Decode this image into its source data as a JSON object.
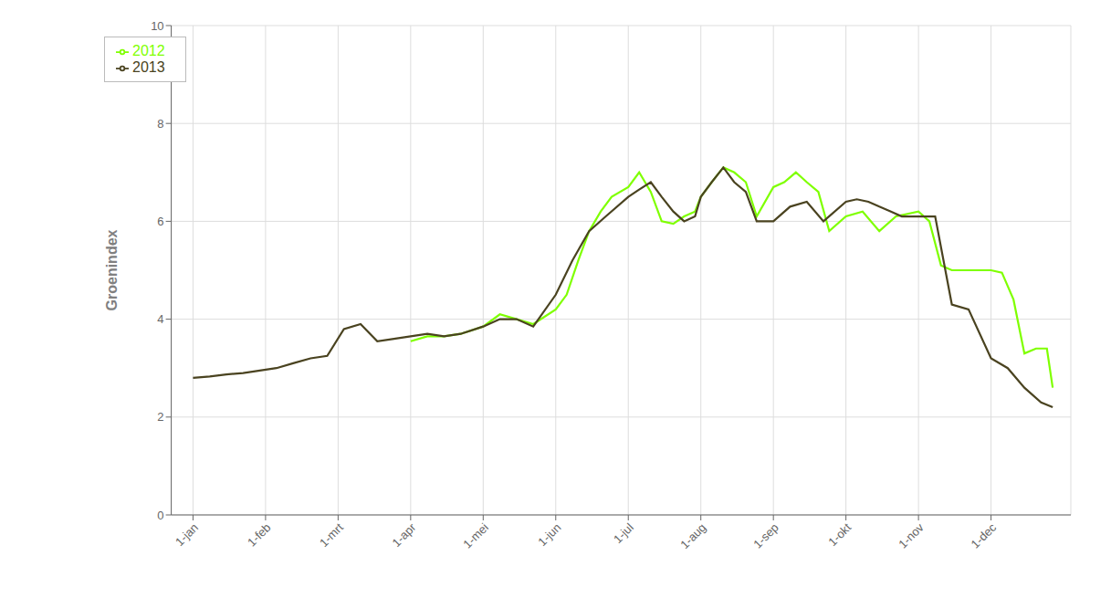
{
  "chart_data": {
    "type": "line",
    "ylabel": "Groenindex",
    "xlim": [
      -0.3,
      12.1
    ],
    "xticks": [
      {
        "value": 0,
        "label": "1-jan"
      },
      {
        "value": 1,
        "label": "1-feb"
      },
      {
        "value": 2,
        "label": "1-mrt"
      },
      {
        "value": 3,
        "label": "1-apr"
      },
      {
        "value": 4,
        "label": "1-mei"
      },
      {
        "value": 5,
        "label": "1-jun"
      },
      {
        "value": 6,
        "label": "1-jul"
      },
      {
        "value": 7,
        "label": "1-aug"
      },
      {
        "value": 8,
        "label": "1-sep"
      },
      {
        "value": 9,
        "label": "1-okt"
      },
      {
        "value": 10,
        "label": "1-nov"
      },
      {
        "value": 11,
        "label": "1-dec"
      }
    ],
    "ylim": [
      0,
      10
    ],
    "yticks": [
      0,
      2,
      4,
      6,
      8,
      10
    ],
    "grid": true,
    "legend": "upper left",
    "series": [
      {
        "name": "2012",
        "color": "#7fff00",
        "x": [
          3.0,
          3.23,
          3.46,
          3.69,
          4.0,
          4.23,
          4.46,
          4.69,
          5.0,
          5.15,
          5.31,
          5.46,
          5.62,
          5.77,
          6.0,
          6.15,
          6.31,
          6.46,
          6.62,
          6.77,
          6.92,
          7.0,
          7.15,
          7.31,
          7.46,
          7.62,
          7.77,
          8.0,
          8.15,
          8.31,
          8.46,
          8.62,
          8.77,
          9.0,
          9.23,
          9.46,
          9.69,
          10.0,
          10.15,
          10.31,
          10.46,
          10.62,
          11.0,
          11.15,
          11.31,
          11.46,
          11.62,
          11.77,
          11.85
        ],
        "values": [
          3.55,
          3.65,
          3.65,
          3.7,
          3.85,
          4.1,
          4.0,
          3.9,
          4.2,
          4.5,
          5.2,
          5.8,
          6.2,
          6.5,
          6.7,
          7.0,
          6.6,
          6.0,
          5.95,
          6.1,
          6.2,
          6.5,
          6.8,
          7.1,
          7.0,
          6.8,
          6.1,
          6.7,
          6.8,
          7.0,
          6.8,
          6.6,
          5.8,
          6.1,
          6.2,
          5.8,
          6.1,
          6.2,
          6.0,
          5.1,
          5.0,
          5.0,
          5.0,
          4.95,
          4.4,
          3.3,
          3.4,
          3.4,
          2.6
        ]
      },
      {
        "name": "2013",
        "color": "#4a4320",
        "x": [
          0.0,
          0.23,
          0.46,
          0.69,
          0.92,
          1.15,
          1.38,
          1.62,
          1.85,
          2.08,
          2.31,
          2.54,
          2.77,
          3.0,
          3.23,
          3.46,
          3.69,
          4.0,
          4.23,
          4.46,
          4.69,
          5.0,
          5.23,
          5.46,
          5.69,
          6.0,
          6.15,
          6.31,
          6.46,
          6.62,
          6.77,
          6.92,
          7.0,
          7.15,
          7.31,
          7.46,
          7.62,
          7.77,
          8.0,
          8.23,
          8.46,
          8.69,
          9.0,
          9.15,
          9.31,
          9.46,
          9.62,
          9.77,
          10.0,
          10.23,
          10.46,
          10.69,
          11.0,
          11.23,
          11.46,
          11.69,
          11.85
        ],
        "values": [
          2.8,
          2.83,
          2.87,
          2.9,
          2.95,
          3.0,
          3.1,
          3.2,
          3.25,
          3.8,
          3.9,
          3.55,
          3.6,
          3.65,
          3.7,
          3.65,
          3.7,
          3.85,
          4.0,
          4.0,
          3.85,
          4.5,
          5.2,
          5.8,
          6.1,
          6.5,
          6.65,
          6.8,
          6.5,
          6.2,
          6.0,
          6.1,
          6.5,
          6.8,
          7.1,
          6.8,
          6.6,
          6.0,
          6.0,
          6.3,
          6.4,
          6.0,
          6.4,
          6.45,
          6.4,
          6.3,
          6.2,
          6.1,
          6.1,
          6.1,
          4.3,
          4.2,
          3.2,
          3.0,
          2.6,
          2.3,
          2.2
        ]
      }
    ]
  }
}
